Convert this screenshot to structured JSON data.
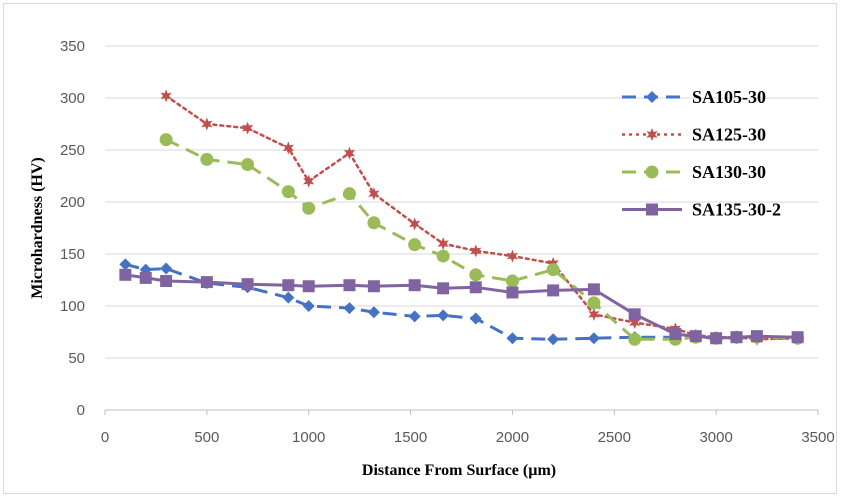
{
  "chart_data": {
    "type": "line",
    "title": "",
    "xlabel": "Distance From Surface (µm)",
    "ylabel": "Microhardness (HV)",
    "xlim": [
      0,
      3500
    ],
    "ylim": [
      0,
      350
    ],
    "xticks": [
      0,
      500,
      1000,
      1500,
      2000,
      2500,
      3000,
      3500
    ],
    "yticks": [
      0,
      50,
      100,
      150,
      200,
      250,
      300,
      350
    ],
    "grid": "horizontal",
    "legend_position": "right",
    "series": [
      {
        "name": "SA105-30",
        "color": "#4472C4",
        "line_style": "dashed",
        "marker": "diamond",
        "x": [
          100,
          200,
          300,
          500,
          700,
          900,
          1000,
          1200,
          1320,
          1520,
          1660,
          1820,
          2000,
          2200,
          2400,
          2600,
          2800,
          2900,
          3000,
          3100,
          3200,
          3400
        ],
        "y": [
          140,
          135,
          136,
          122,
          118,
          108,
          100,
          98,
          94,
          90,
          91,
          88,
          69,
          68,
          69,
          70,
          70,
          70,
          69,
          69,
          69,
          69
        ]
      },
      {
        "name": "SA125-30",
        "color": "#C0504D",
        "line_style": "dotted",
        "marker": "star",
        "x": [
          300,
          500,
          700,
          900,
          1000,
          1200,
          1320,
          1520,
          1660,
          1820,
          2000,
          2200,
          2400,
          2600,
          2800,
          2900,
          3000,
          3100,
          3200,
          3400
        ],
        "y": [
          302,
          275,
          271,
          252,
          220,
          247,
          208,
          179,
          160,
          153,
          148,
          141,
          92,
          84,
          78,
          72,
          70,
          70,
          68,
          69
        ]
      },
      {
        "name": "SA130-30",
        "color": "#9BBB59",
        "line_style": "dashed",
        "marker": "circle",
        "x": [
          300,
          500,
          700,
          900,
          1000,
          1200,
          1320,
          1520,
          1660,
          1820,
          2000,
          2200,
          2400,
          2600,
          2800,
          2900,
          3000,
          3100,
          3200,
          3400
        ],
        "y": [
          260,
          241,
          236,
          210,
          194,
          208,
          180,
          159,
          148,
          130,
          124,
          135,
          103,
          68,
          68,
          70,
          69,
          70,
          70,
          69
        ]
      },
      {
        "name": "SA135-30-2",
        "color": "#8064A2",
        "line_style": "solid",
        "marker": "square",
        "x": [
          100,
          200,
          300,
          500,
          700,
          900,
          1000,
          1200,
          1320,
          1520,
          1660,
          1820,
          2000,
          2200,
          2400,
          2600,
          2800,
          2900,
          3000,
          3100,
          3200,
          3400
        ],
        "y": [
          130,
          127,
          124,
          123,
          121,
          120,
          119,
          120,
          119,
          120,
          117,
          118,
          113,
          115,
          116,
          92,
          73,
          71,
          69,
          70,
          71,
          70
        ]
      }
    ]
  }
}
